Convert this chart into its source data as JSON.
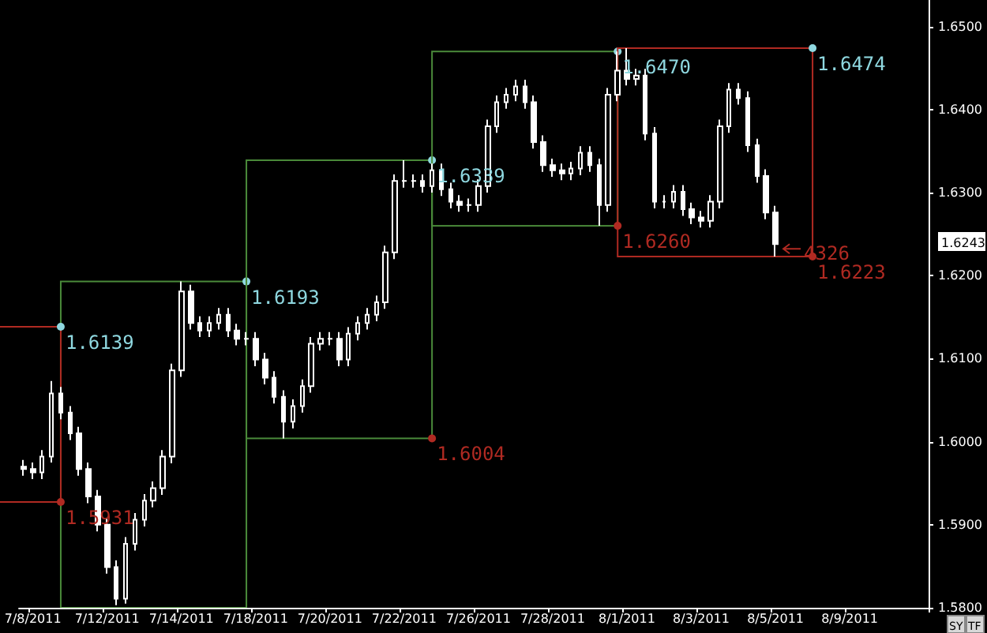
{
  "chart_data": {
    "type": "candlestick",
    "color": "#ffffff",
    "categories": [
      null,
      "7/8/2011",
      null,
      null,
      null,
      null,
      null,
      null,
      null,
      "7/12/2011",
      null,
      null,
      null,
      null,
      null,
      null,
      null,
      "7/14/2011",
      null,
      null,
      null,
      null,
      null,
      null,
      null,
      "7/18/2011",
      null,
      null,
      null,
      null,
      null,
      null,
      null,
      "7/20/2011",
      null,
      null,
      null,
      null,
      null,
      null,
      null,
      "7/22/2011",
      null,
      null,
      null,
      null,
      null,
      null,
      null,
      "7/26/2011",
      null,
      null,
      null,
      null,
      null,
      null,
      null,
      "7/28/2011",
      null,
      null,
      null,
      null,
      null,
      null,
      null,
      "8/1/2011",
      null,
      null,
      null,
      null,
      null,
      null,
      null,
      "8/3/2011",
      null,
      null,
      null,
      null,
      null,
      null,
      null,
      "8/5/2011",
      null,
      null,
      null,
      null,
      null,
      null,
      null,
      "8/9/2011",
      null,
      null,
      null,
      null,
      null,
      null,
      null,
      null
    ],
    "ohlc": [
      [
        1.597,
        1.5978,
        1.5959,
        1.5967
      ],
      [
        1.5967,
        1.5975,
        1.5955,
        1.5963
      ],
      [
        1.5963,
        1.599,
        1.5955,
        1.5982
      ],
      [
        1.5982,
        1.6073,
        1.5975,
        1.6058
      ],
      [
        1.6058,
        1.6066,
        1.6027,
        1.6035
      ],
      [
        1.6035,
        1.6043,
        1.6002,
        1.601
      ],
      [
        1.601,
        1.6018,
        1.5959,
        1.5967
      ],
      [
        1.5967,
        1.5975,
        1.5926,
        1.5934
      ],
      [
        1.5934,
        1.5942,
        1.5892,
        1.59
      ],
      [
        1.59,
        1.5908,
        1.5841,
        1.5849
      ],
      [
        1.5849,
        1.5857,
        1.5803,
        1.5811
      ],
      [
        1.5811,
        1.5885,
        1.5805,
        1.5877
      ],
      [
        1.5877,
        1.5914,
        1.5869,
        1.5906
      ],
      [
        1.5906,
        1.5937,
        1.5898,
        1.5929
      ],
      [
        1.5929,
        1.5952,
        1.5921,
        1.5944
      ],
      [
        1.5944,
        1.599,
        1.5936,
        1.5982
      ],
      [
        1.5982,
        1.6094,
        1.5974,
        1.6086
      ],
      [
        1.6086,
        1.6193,
        1.6078,
        1.6181
      ],
      [
        1.6181,
        1.6189,
        1.6135,
        1.6143
      ],
      [
        1.6143,
        1.6151,
        1.6126,
        1.6134
      ],
      [
        1.6134,
        1.6151,
        1.6126,
        1.6143
      ],
      [
        1.6143,
        1.6161,
        1.6135,
        1.6153
      ],
      [
        1.6153,
        1.6161,
        1.6126,
        1.6134
      ],
      [
        1.6134,
        1.6142,
        1.6116,
        1.6124
      ],
      [
        1.6124,
        1.6132,
        1.6116,
        1.6124
      ],
      [
        1.6124,
        1.6132,
        1.6091,
        1.6099
      ],
      [
        1.6099,
        1.6107,
        1.6069,
        1.6077
      ],
      [
        1.6077,
        1.6085,
        1.6046,
        1.6054
      ],
      [
        1.6054,
        1.6062,
        1.6004,
        1.6024
      ],
      [
        1.6024,
        1.6051,
        1.6016,
        1.6043
      ],
      [
        1.6043,
        1.6075,
        1.6035,
        1.6067
      ],
      [
        1.6067,
        1.6126,
        1.6059,
        1.6118
      ],
      [
        1.6118,
        1.6132,
        1.611,
        1.6124
      ],
      [
        1.6124,
        1.6132,
        1.6116,
        1.6124
      ],
      [
        1.6124,
        1.6132,
        1.6091,
        1.6099
      ],
      [
        1.6099,
        1.6138,
        1.6091,
        1.613
      ],
      [
        1.613,
        1.6151,
        1.6122,
        1.6143
      ],
      [
        1.6143,
        1.6161,
        1.6135,
        1.6153
      ],
      [
        1.6153,
        1.6176,
        1.6145,
        1.6168
      ],
      [
        1.6168,
        1.6236,
        1.616,
        1.6228
      ],
      [
        1.6228,
        1.6322,
        1.622,
        1.6314
      ],
      [
        1.6314,
        1.6339,
        1.6306,
        1.6314
      ],
      [
        1.6314,
        1.6322,
        1.6306,
        1.6314
      ],
      [
        1.6314,
        1.6322,
        1.63,
        1.6308
      ],
      [
        1.6308,
        1.6335,
        1.63,
        1.6327
      ],
      [
        1.6327,
        1.6335,
        1.6296,
        1.6304
      ],
      [
        1.6304,
        1.6312,
        1.6281,
        1.6289
      ],
      [
        1.6289,
        1.6297,
        1.6277,
        1.6285
      ],
      [
        1.6285,
        1.6293,
        1.6277,
        1.6285
      ],
      [
        1.6285,
        1.6316,
        1.6277,
        1.6308
      ],
      [
        1.6308,
        1.6388,
        1.63,
        1.638
      ],
      [
        1.638,
        1.6417,
        1.6372,
        1.6409
      ],
      [
        1.6409,
        1.6426,
        1.6401,
        1.6418
      ],
      [
        1.6418,
        1.6436,
        1.641,
        1.6428
      ],
      [
        1.6428,
        1.6436,
        1.6401,
        1.6409
      ],
      [
        1.6409,
        1.6417,
        1.6353,
        1.6361
      ],
      [
        1.6361,
        1.6369,
        1.6325,
        1.6333
      ],
      [
        1.6333,
        1.6341,
        1.6319,
        1.6327
      ],
      [
        1.6327,
        1.6335,
        1.6315,
        1.6323
      ],
      [
        1.6323,
        1.6337,
        1.6315,
        1.6329
      ],
      [
        1.6329,
        1.6356,
        1.6321,
        1.6348
      ],
      [
        1.6348,
        1.6356,
        1.6325,
        1.6333
      ],
      [
        1.6333,
        1.6341,
        1.626,
        1.6285
      ],
      [
        1.6285,
        1.6426,
        1.6277,
        1.6418
      ],
      [
        1.6418,
        1.647,
        1.641,
        1.6447
      ],
      [
        1.6447,
        1.6474,
        1.6429,
        1.6437
      ],
      [
        1.6437,
        1.6449,
        1.6429,
        1.6441
      ],
      [
        1.6441,
        1.6449,
        1.6363,
        1.6371
      ],
      [
        1.6371,
        1.6379,
        1.6281,
        1.6289
      ],
      [
        1.6289,
        1.6297,
        1.6281,
        1.6289
      ],
      [
        1.6289,
        1.6309,
        1.6281,
        1.6301
      ],
      [
        1.6301,
        1.6309,
        1.6272,
        1.628
      ],
      [
        1.628,
        1.6288,
        1.6262,
        1.627
      ],
      [
        1.627,
        1.6278,
        1.6258,
        1.6266
      ],
      [
        1.6266,
        1.6297,
        1.6258,
        1.6289
      ],
      [
        1.6289,
        1.6388,
        1.6281,
        1.638
      ],
      [
        1.638,
        1.6432,
        1.6372,
        1.6424
      ],
      [
        1.6424,
        1.6432,
        1.6406,
        1.6414
      ],
      [
        1.6414,
        1.6422,
        1.6349,
        1.6357
      ],
      [
        1.6357,
        1.6365,
        1.6312,
        1.632
      ],
      [
        1.632,
        1.6328,
        1.6268,
        1.6276
      ],
      [
        1.6276,
        1.6284,
        1.6223,
        1.6238
      ],
      null,
      null,
      null,
      null,
      null,
      null,
      null,
      null,
      null,
      null,
      null,
      null,
      null,
      null,
      null,
      null
    ],
    "ylim": [
      1.58,
      1.6532
    ],
    "yticks": [
      {
        "value": 1.58,
        "label": "1.5800"
      },
      {
        "value": 1.59,
        "label": "1.5900"
      },
      {
        "value": 1.6,
        "label": "1.6000"
      },
      {
        "value": 1.61,
        "label": "1.6100"
      },
      {
        "value": 1.62,
        "label": "1.6200"
      },
      {
        "value": 1.63,
        "label": "1.6300"
      },
      {
        "value": 1.64,
        "label": "1.6400"
      },
      {
        "value": 1.65,
        "label": "1.6500"
      }
    ],
    "grid": false,
    "annotations": [
      "1.6139",
      "1.5931",
      "1.6193",
      "1.6004",
      "1.6339",
      "1.6260",
      "1.6470",
      "1.6474",
      "1.6223",
      "4326",
      "1.6243",
      "SY",
      "TF"
    ]
  }
}
